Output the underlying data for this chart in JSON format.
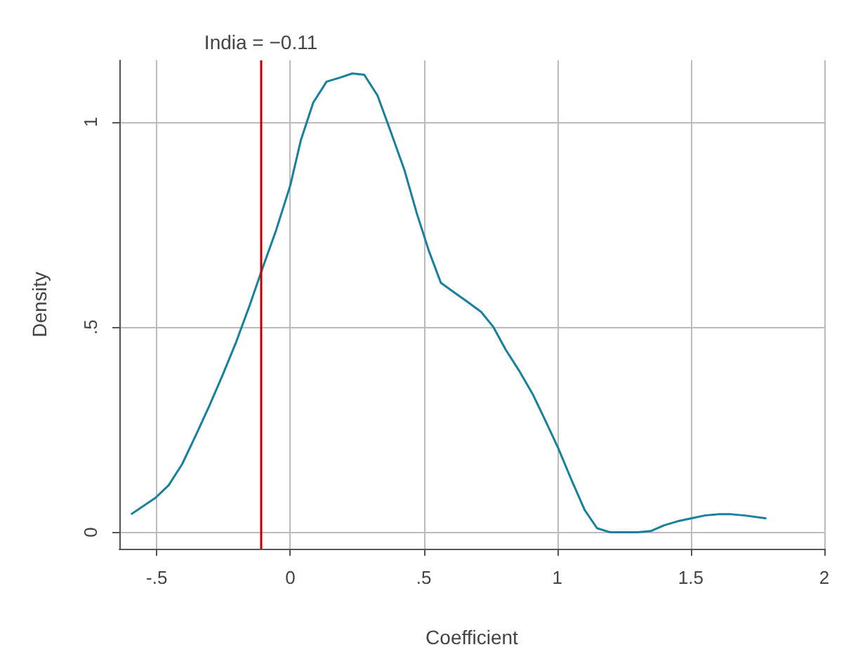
{
  "chart_data": {
    "type": "line",
    "xlabel": "Coefficient",
    "ylabel": "Density",
    "x": [
      -0.596,
      -0.505,
      -0.455,
      -0.405,
      -0.354,
      -0.304,
      -0.254,
      -0.203,
      -0.153,
      -0.103,
      -0.053,
      0,
      0.04,
      0.086,
      0.136,
      0.186,
      0.232,
      0.277,
      0.327,
      0.378,
      0.428,
      0.474,
      0.519,
      0.564,
      0.615,
      0.665,
      0.715,
      0.761,
      0.806,
      0.856,
      0.907,
      0.952,
      1.003,
      1.053,
      1.103,
      1.149,
      1.199,
      1.249,
      1.3,
      1.35,
      1.4,
      1.451,
      1.501,
      1.552,
      1.602,
      1.652,
      1.703,
      1.783
    ],
    "series": [
      {
        "color": "#16819c",
        "values": [
          0.044,
          0.084,
          0.115,
          0.166,
          0.236,
          0.307,
          0.382,
          0.463,
          0.551,
          0.645,
          0.736,
          0.845,
          0.956,
          1.047,
          1.098,
          1.108,
          1.118,
          1.115,
          1.064,
          0.973,
          0.882,
          0.777,
          0.686,
          0.608,
          0.584,
          0.561,
          0.537,
          0.5,
          0.446,
          0.395,
          0.338,
          0.277,
          0.206,
          0.128,
          0.054,
          0.01,
          0,
          0,
          0,
          0.003,
          0.017,
          0.027,
          0.034,
          0.041,
          0.044,
          0.044,
          0.041,
          0.034
        ]
      }
    ],
    "xlim": [
      -0.64,
      2.0
    ],
    "ylim": [
      -0.04,
      1.15
    ],
    "xticks": [
      {
        "value": -0.5,
        "label": "-.5"
      },
      0,
      {
        "value": 0.5,
        "label": ".5"
      },
      1,
      1.5,
      2
    ],
    "yticks": [
      0,
      {
        "value": 0.5,
        "label": ".5"
      },
      1
    ],
    "ref_lines": [
      {
        "axis": "x",
        "value": -0.11,
        "label": "India = −0.11",
        "color": "#c00000"
      }
    ],
    "grid": true,
    "marker": "none",
    "line_style": "solid"
  }
}
